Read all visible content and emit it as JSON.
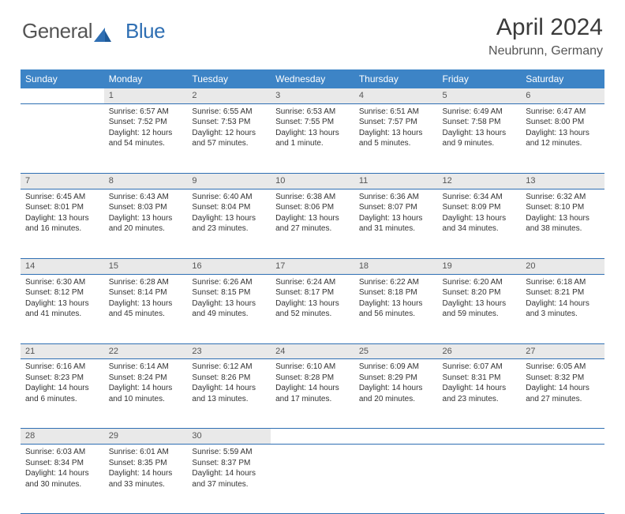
{
  "brand": {
    "part1": "General",
    "part2": "Blue"
  },
  "title": "April 2024",
  "subtitle": "Neubrunn, Germany",
  "colors": {
    "header_bg": "#3d84c6",
    "header_text": "#ffffff",
    "border": "#2f6fb3",
    "daynum_bg": "#e9e9e9",
    "text": "#333333",
    "logo_gray": "#555555",
    "logo_blue": "#2f6fb3",
    "page_bg": "#ffffff"
  },
  "day_headers": [
    "Sunday",
    "Monday",
    "Tuesday",
    "Wednesday",
    "Thursday",
    "Friday",
    "Saturday"
  ],
  "weeks": [
    [
      null,
      {
        "n": "1",
        "sr": "6:57 AM",
        "ss": "7:52 PM",
        "dl": "12 hours and 54 minutes."
      },
      {
        "n": "2",
        "sr": "6:55 AM",
        "ss": "7:53 PM",
        "dl": "12 hours and 57 minutes."
      },
      {
        "n": "3",
        "sr": "6:53 AM",
        "ss": "7:55 PM",
        "dl": "13 hours and 1 minute."
      },
      {
        "n": "4",
        "sr": "6:51 AM",
        "ss": "7:57 PM",
        "dl": "13 hours and 5 minutes."
      },
      {
        "n": "5",
        "sr": "6:49 AM",
        "ss": "7:58 PM",
        "dl": "13 hours and 9 minutes."
      },
      {
        "n": "6",
        "sr": "6:47 AM",
        "ss": "8:00 PM",
        "dl": "13 hours and 12 minutes."
      }
    ],
    [
      {
        "n": "7",
        "sr": "6:45 AM",
        "ss": "8:01 PM",
        "dl": "13 hours and 16 minutes."
      },
      {
        "n": "8",
        "sr": "6:43 AM",
        "ss": "8:03 PM",
        "dl": "13 hours and 20 minutes."
      },
      {
        "n": "9",
        "sr": "6:40 AM",
        "ss": "8:04 PM",
        "dl": "13 hours and 23 minutes."
      },
      {
        "n": "10",
        "sr": "6:38 AM",
        "ss": "8:06 PM",
        "dl": "13 hours and 27 minutes."
      },
      {
        "n": "11",
        "sr": "6:36 AM",
        "ss": "8:07 PM",
        "dl": "13 hours and 31 minutes."
      },
      {
        "n": "12",
        "sr": "6:34 AM",
        "ss": "8:09 PM",
        "dl": "13 hours and 34 minutes."
      },
      {
        "n": "13",
        "sr": "6:32 AM",
        "ss": "8:10 PM",
        "dl": "13 hours and 38 minutes."
      }
    ],
    [
      {
        "n": "14",
        "sr": "6:30 AM",
        "ss": "8:12 PM",
        "dl": "13 hours and 41 minutes."
      },
      {
        "n": "15",
        "sr": "6:28 AM",
        "ss": "8:14 PM",
        "dl": "13 hours and 45 minutes."
      },
      {
        "n": "16",
        "sr": "6:26 AM",
        "ss": "8:15 PM",
        "dl": "13 hours and 49 minutes."
      },
      {
        "n": "17",
        "sr": "6:24 AM",
        "ss": "8:17 PM",
        "dl": "13 hours and 52 minutes."
      },
      {
        "n": "18",
        "sr": "6:22 AM",
        "ss": "8:18 PM",
        "dl": "13 hours and 56 minutes."
      },
      {
        "n": "19",
        "sr": "6:20 AM",
        "ss": "8:20 PM",
        "dl": "13 hours and 59 minutes."
      },
      {
        "n": "20",
        "sr": "6:18 AM",
        "ss": "8:21 PM",
        "dl": "14 hours and 3 minutes."
      }
    ],
    [
      {
        "n": "21",
        "sr": "6:16 AM",
        "ss": "8:23 PM",
        "dl": "14 hours and 6 minutes."
      },
      {
        "n": "22",
        "sr": "6:14 AM",
        "ss": "8:24 PM",
        "dl": "14 hours and 10 minutes."
      },
      {
        "n": "23",
        "sr": "6:12 AM",
        "ss": "8:26 PM",
        "dl": "14 hours and 13 minutes."
      },
      {
        "n": "24",
        "sr": "6:10 AM",
        "ss": "8:28 PM",
        "dl": "14 hours and 17 minutes."
      },
      {
        "n": "25",
        "sr": "6:09 AM",
        "ss": "8:29 PM",
        "dl": "14 hours and 20 minutes."
      },
      {
        "n": "26",
        "sr": "6:07 AM",
        "ss": "8:31 PM",
        "dl": "14 hours and 23 minutes."
      },
      {
        "n": "27",
        "sr": "6:05 AM",
        "ss": "8:32 PM",
        "dl": "14 hours and 27 minutes."
      }
    ],
    [
      {
        "n": "28",
        "sr": "6:03 AM",
        "ss": "8:34 PM",
        "dl": "14 hours and 30 minutes."
      },
      {
        "n": "29",
        "sr": "6:01 AM",
        "ss": "8:35 PM",
        "dl": "14 hours and 33 minutes."
      },
      {
        "n": "30",
        "sr": "5:59 AM",
        "ss": "8:37 PM",
        "dl": "14 hours and 37 minutes."
      },
      null,
      null,
      null,
      null
    ]
  ],
  "labels": {
    "sunrise": "Sunrise:",
    "sunset": "Sunset:",
    "daylight": "Daylight:"
  }
}
